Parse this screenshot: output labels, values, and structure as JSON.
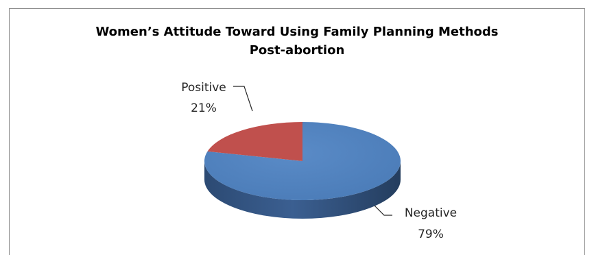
{
  "chart_data": {
    "type": "pie",
    "title_lines": [
      "Women’s Attitude Toward Using Family Planning Methods",
      "Post-abortion"
    ],
    "style": "3d",
    "slices": [
      {
        "label": "Negative",
        "value": 79,
        "display": "79%",
        "color": "#4f81bd"
      },
      {
        "label": "Positive",
        "value": 21,
        "display": "21%",
        "color": "#c0504d"
      }
    ],
    "legend": "none"
  }
}
